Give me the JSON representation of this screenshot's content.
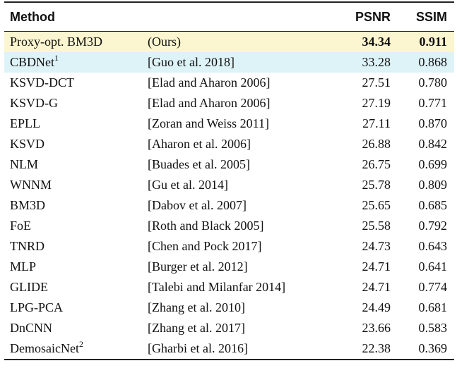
{
  "headers": {
    "method": "Method",
    "reference": "",
    "psnr": "PSNR",
    "ssim": "SSIM"
  },
  "rows": [
    {
      "method": "Proxy-opt. BM3D",
      "sup": "",
      "reference": "(Ours)",
      "psnr": "34.34",
      "ssim": "0.911"
    },
    {
      "method": "CBDNet",
      "sup": "1",
      "reference": "[Guo et al. 2018]",
      "psnr": "33.28",
      "ssim": "0.868"
    },
    {
      "method": "KSVD-DCT",
      "sup": "",
      "reference": "[Elad and Aharon 2006]",
      "psnr": "27.51",
      "ssim": "0.780"
    },
    {
      "method": "KSVD-G",
      "sup": "",
      "reference": "[Elad and Aharon 2006]",
      "psnr": "27.19",
      "ssim": "0.771"
    },
    {
      "method": "EPLL",
      "sup": "",
      "reference": "[Zoran and Weiss 2011]",
      "psnr": "27.11",
      "ssim": "0.870"
    },
    {
      "method": "KSVD",
      "sup": "",
      "reference": "[Aharon et al. 2006]",
      "psnr": "26.88",
      "ssim": "0.842"
    },
    {
      "method": "NLM",
      "sup": "",
      "reference": "[Buades et al. 2005]",
      "psnr": "26.75",
      "ssim": "0.699"
    },
    {
      "method": "WNNM",
      "sup": "",
      "reference": "[Gu et al. 2014]",
      "psnr": "25.78",
      "ssim": "0.809"
    },
    {
      "method": "BM3D",
      "sup": "",
      "reference": "[Dabov et al. 2007]",
      "psnr": "25.65",
      "ssim": "0.685"
    },
    {
      "method": "FoE",
      "sup": "",
      "reference": "[Roth and Black 2005]",
      "psnr": "25.58",
      "ssim": "0.792"
    },
    {
      "method": "TNRD",
      "sup": "",
      "reference": "[Chen and Pock 2017]",
      "psnr": "24.73",
      "ssim": "0.643"
    },
    {
      "method": "MLP",
      "sup": "",
      "reference": "[Burger et al. 2012]",
      "psnr": "24.71",
      "ssim": "0.641"
    },
    {
      "method": "GLIDE",
      "sup": "",
      "reference": "[Talebi and Milanfar 2014]",
      "psnr": "24.71",
      "ssim": "0.774"
    },
    {
      "method": "LPG-PCA",
      "sup": "",
      "reference": "[Zhang et al. 2010]",
      "psnr": "24.49",
      "ssim": "0.681"
    },
    {
      "method": "DnCNN",
      "sup": "",
      "reference": "[Zhang et al. 2017]",
      "psnr": "23.66",
      "ssim": "0.583"
    },
    {
      "method": "DemosaicNet",
      "sup": "2",
      "reference": "[Gharbi et al. 2016]",
      "psnr": "22.38",
      "ssim": "0.369"
    }
  ],
  "highlight_colors": {
    "ours": "#fbf6cf",
    "cbdnet": "#def3f8"
  }
}
